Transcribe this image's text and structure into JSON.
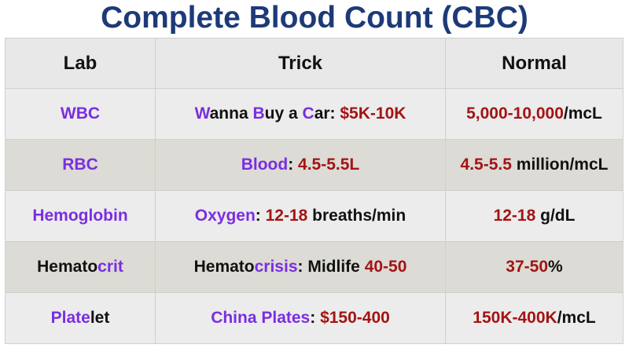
{
  "title": "Complete Blood Count (CBC)",
  "headers": [
    "Lab",
    "Trick",
    "Normal"
  ],
  "colors": {
    "purple": "#7a2ee0",
    "red": "#a31414",
    "title": "#1d3a78"
  },
  "rows": [
    {
      "lab": [
        {
          "t": "WBC",
          "c": "p"
        }
      ],
      "trick": [
        {
          "t": "W",
          "c": "p"
        },
        {
          "t": "anna ",
          "c": "k"
        },
        {
          "t": "B",
          "c": "p"
        },
        {
          "t": "uy a ",
          "c": "k"
        },
        {
          "t": "C",
          "c": "p"
        },
        {
          "t": "ar: ",
          "c": "k"
        },
        {
          "t": "$5K-10K",
          "c": "r"
        }
      ],
      "normal": [
        {
          "t": "5,000-10,000",
          "c": "r"
        },
        {
          "t": "/mcL",
          "c": "k"
        }
      ]
    },
    {
      "lab": [
        {
          "t": "RBC",
          "c": "p"
        }
      ],
      "trick": [
        {
          "t": "Blood",
          "c": "p"
        },
        {
          "t": ": ",
          "c": "k"
        },
        {
          "t": "4.5-5.5L",
          "c": "r"
        }
      ],
      "normal": [
        {
          "t": "4.5-5.5",
          "c": "r"
        },
        {
          "t": " million/mcL",
          "c": "k"
        }
      ]
    },
    {
      "lab": [
        {
          "t": "Hemoglobin",
          "c": "p"
        }
      ],
      "trick": [
        {
          "t": "Oxygen",
          "c": "p"
        },
        {
          "t": ": ",
          "c": "k"
        },
        {
          "t": "12-18",
          "c": "r"
        },
        {
          "t": " breaths/min",
          "c": "k"
        }
      ],
      "normal": [
        {
          "t": "12-18",
          "c": "r"
        },
        {
          "t": " g/dL",
          "c": "k"
        }
      ]
    },
    {
      "lab": [
        {
          "t": "Hemato",
          "c": "k"
        },
        {
          "t": "crit",
          "c": "p"
        }
      ],
      "trick": [
        {
          "t": "Hemato",
          "c": "k"
        },
        {
          "t": "crisis",
          "c": "p"
        },
        {
          "t": ": Midlife ",
          "c": "k"
        },
        {
          "t": "40-50",
          "c": "r"
        }
      ],
      "normal": [
        {
          "t": "37-50",
          "c": "r"
        },
        {
          "t": "%",
          "c": "k"
        }
      ]
    },
    {
      "lab": [
        {
          "t": "Plate",
          "c": "p"
        },
        {
          "t": "let",
          "c": "k"
        }
      ],
      "trick": [
        {
          "t": "China Plates",
          "c": "p"
        },
        {
          "t": ": ",
          "c": "k"
        },
        {
          "t": "$150-400",
          "c": "r"
        }
      ],
      "normal": [
        {
          "t": "150K-400K",
          "c": "r"
        },
        {
          "t": "/mcL",
          "c": "k"
        }
      ]
    }
  ]
}
